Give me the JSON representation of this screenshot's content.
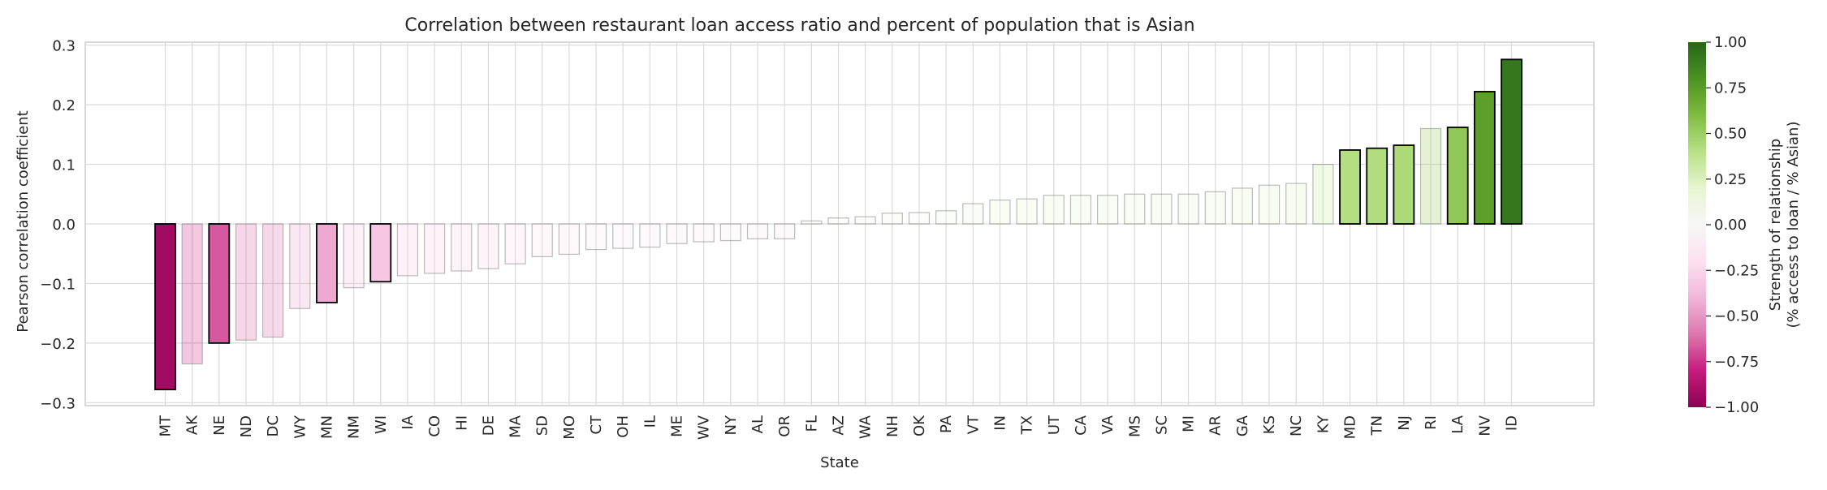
{
  "chart_data": {
    "type": "bar",
    "title": "Correlation between restaurant loan access ratio and percent of population that is Asian",
    "xlabel": "State",
    "ylabel": "Pearson correlation coefficient",
    "ylim": [
      -0.305,
      0.305
    ],
    "yticks": [
      0.3,
      0.2,
      0.1,
      0.0,
      -0.1,
      -0.2,
      -0.3
    ],
    "ytick_labels": [
      "0.3",
      "0.2",
      "0.1",
      "0.0",
      "−0.1",
      "−0.2",
      "−0.3"
    ],
    "grid": true,
    "categories": [
      "MT",
      "AK",
      "NE",
      "ND",
      "DC",
      "WY",
      "MN",
      "NM",
      "WI",
      "IA",
      "CO",
      "HI",
      "DE",
      "MA",
      "SD",
      "MO",
      "CT",
      "OH",
      "IL",
      "ME",
      "WV",
      "NY",
      "AL",
      "OR",
      "FL",
      "AZ",
      "WA",
      "NH",
      "OK",
      "PA",
      "VT",
      "IN",
      "TX",
      "UT",
      "CA",
      "VA",
      "MS",
      "SC",
      "MI",
      "AR",
      "GA",
      "KS",
      "NC",
      "KY",
      "MD",
      "TN",
      "NJ",
      "RI",
      "LA",
      "NV",
      "ID"
    ],
    "values": [
      -0.278,
      -0.235,
      -0.2,
      -0.195,
      -0.19,
      -0.142,
      -0.132,
      -0.107,
      -0.097,
      -0.087,
      -0.083,
      -0.079,
      -0.075,
      -0.067,
      -0.055,
      -0.051,
      -0.043,
      -0.041,
      -0.039,
      -0.033,
      -0.03,
      -0.028,
      -0.025,
      -0.025,
      0.005,
      0.01,
      0.012,
      0.018,
      0.019,
      0.022,
      0.034,
      0.04,
      0.042,
      0.048,
      0.048,
      0.048,
      0.05,
      0.05,
      0.05,
      0.054,
      0.06,
      0.065,
      0.068,
      0.1,
      0.124,
      0.127,
      0.132,
      0.16,
      0.162,
      0.222,
      0.276
    ],
    "significant": [
      "MT",
      "NE",
      "MN",
      "WI",
      "MD",
      "TN",
      "NJ",
      "LA",
      "NV",
      "ID"
    ],
    "colorbar": {
      "label_lines": [
        "Strength of relationship",
        "(% access to loan / % Asian)"
      ],
      "range": [
        -1.0,
        1.0
      ],
      "ticks": [
        "1.00",
        "0.75",
        "0.50",
        "0.25",
        "0.00",
        "−0.25",
        "−0.50",
        "−0.75",
        "−1.00"
      ],
      "colormap": "PiYG",
      "colors": [
        "#8e0152",
        "#c51b7d",
        "#de77ae",
        "#f1b6da",
        "#fde0ef",
        "#f7f7f7",
        "#e6f5d0",
        "#b8e186",
        "#7fbc41",
        "#4d9221",
        "#276419"
      ]
    }
  }
}
